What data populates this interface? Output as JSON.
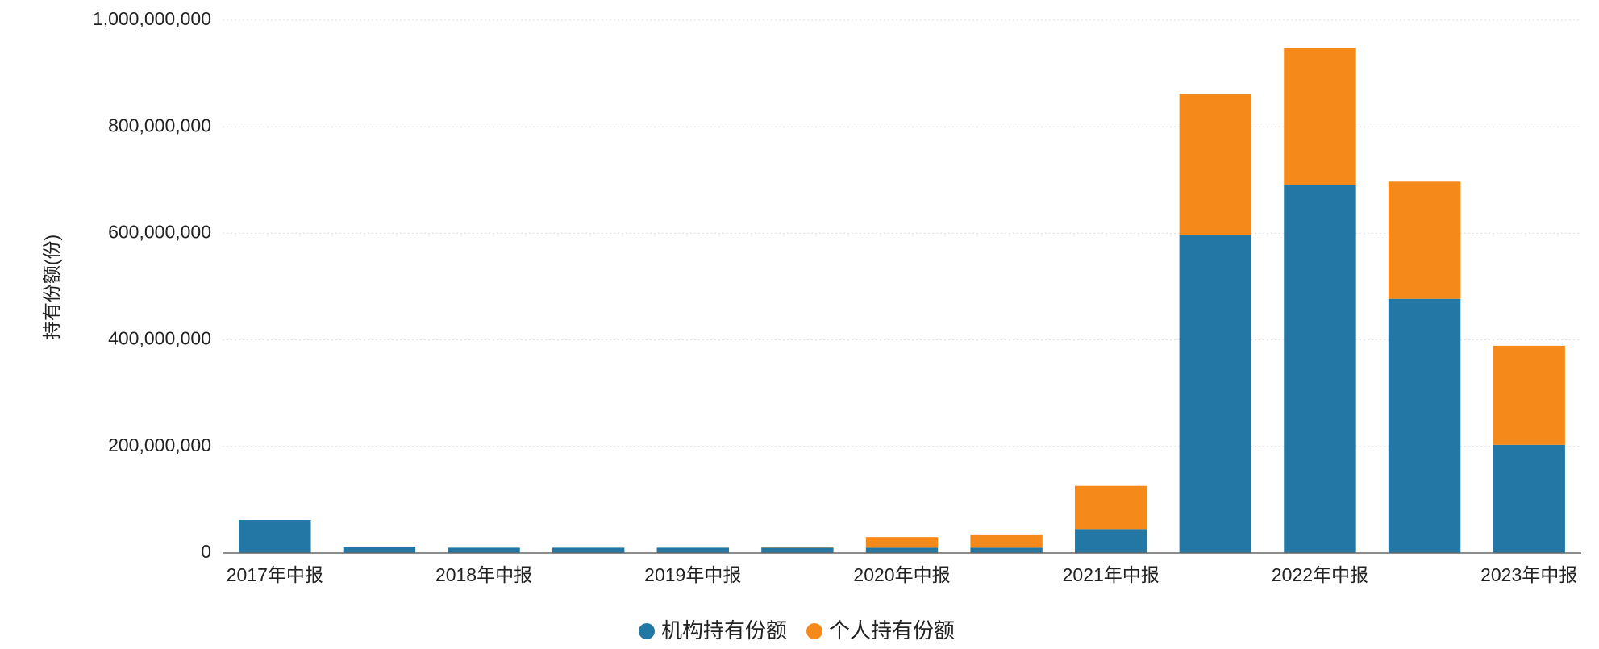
{
  "chart_data": {
    "type": "stacked_bar",
    "y_label": "持有份额(份)",
    "categories": [
      "2017年中报",
      null,
      "2018年中报",
      null,
      "2019年中报",
      null,
      "2020年中报",
      null,
      "2021年中报",
      null,
      "2022年中报",
      null,
      "2023年中报"
    ],
    "series": [
      {
        "name": "机构持有份额",
        "color": "#2277a4",
        "values": [
          62000000,
          12000000,
          10000000,
          10000000,
          10000000,
          10000000,
          10000000,
          10000000,
          45000000,
          597000000,
          690000000,
          477000000,
          203000000
        ]
      },
      {
        "name": "个人持有份额",
        "color": "#f58a1b",
        "values": [
          0,
          0,
          0,
          0,
          0,
          2000000,
          20000000,
          25000000,
          81000000,
          265000000,
          258000000,
          220000000,
          186000000
        ]
      }
    ],
    "ylim": [
      0,
      1000000000
    ],
    "yticks": [
      0,
      {
        "value": 200000000,
        "label": "200,000,000"
      },
      {
        "value": 400000000,
        "label": "400,000,000"
      },
      {
        "value": 600000000,
        "label": "600,000,000"
      },
      {
        "value": 800000000,
        "label": "800,000,000"
      },
      {
        "value": 1000000000,
        "label": "1,000,000,000"
      }
    ],
    "grid": true
  }
}
